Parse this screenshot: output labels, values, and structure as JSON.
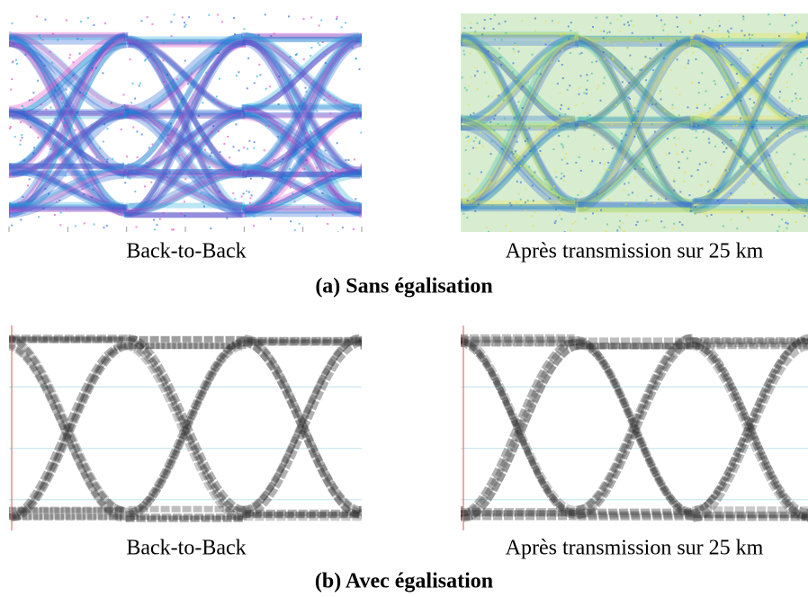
{
  "rows": [
    {
      "title": "(a) Sans égalisation",
      "captions": [
        "Back-to-Back",
        "Après transmission sur 25 km"
      ]
    },
    {
      "title": "(b) Avec égalisation",
      "captions": [
        "Back-to-Back",
        "Après transmission sur 25 km"
      ]
    }
  ]
}
